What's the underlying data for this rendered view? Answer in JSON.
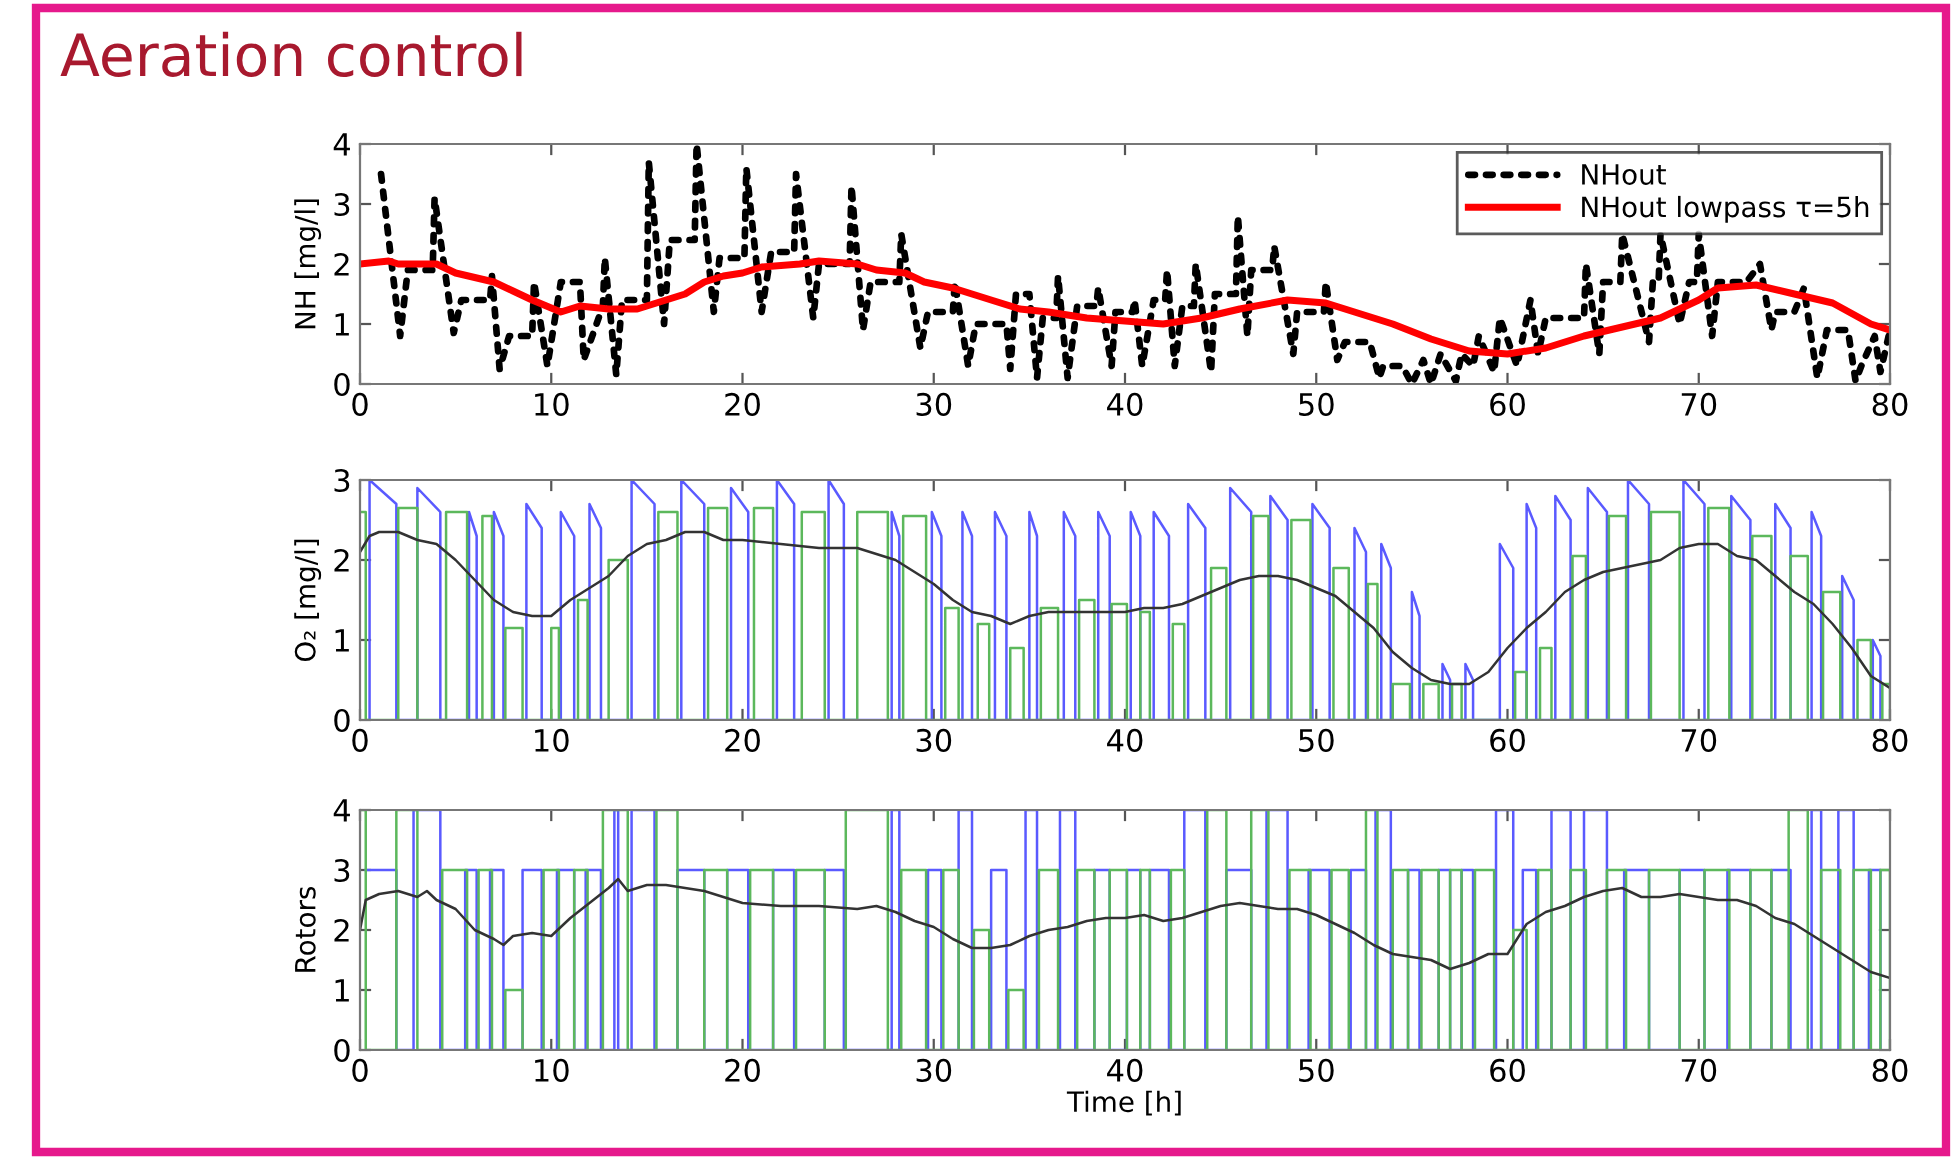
{
  "chart_data": [
    {
      "type": "line",
      "title": "Aeration control",
      "ylabel": "NH [mg/l]",
      "xlim": [
        0,
        80
      ],
      "xticks": [
        0,
        10,
        20,
        30,
        40,
        50,
        60,
        70,
        80
      ],
      "ylim": [
        0,
        4
      ],
      "yticks": [
        0,
        1,
        2,
        3,
        4
      ],
      "grid": false,
      "legend": "top right",
      "series": [
        {
          "name": "NHout",
          "color": "#000000",
          "line_style": "dotted",
          "x": [
            1.1,
            2.1,
            2.5,
            3.8,
            3.9,
            4.9,
            5.3,
            6.8,
            6.9,
            7.3,
            7.8,
            9.0,
            9.1,
            9.8,
            10.5,
            11.5,
            11.7,
            12.7,
            12.8,
            13.4,
            13.7,
            15.0,
            15.1,
            15.9,
            16.2,
            17.5,
            17.6,
            18.5,
            18.8,
            20.1,
            20.2,
            21.0,
            21.5,
            22.7,
            22.8,
            23.7,
            24.0,
            25.6,
            25.7,
            26.3,
            26.7,
            28.2,
            28.3,
            29.3,
            29.7,
            31.0,
            31.1,
            31.8,
            32.2,
            33.8,
            34.0,
            34.3,
            35.0,
            35.4,
            35.7,
            36.4,
            36.5,
            37.0,
            37.5,
            38.5,
            38.6,
            39.3,
            39.5,
            40.4,
            40.5,
            40.9,
            41.5,
            42.1,
            42.2,
            42.6,
            43.0,
            43.6,
            43.7,
            44.5,
            44.7,
            45.8,
            45.9,
            46.4,
            46.6,
            47.7,
            47.8,
            48.8,
            49.0,
            50.4,
            50.5,
            51.1,
            51.5,
            52.8,
            53.3,
            53.5,
            54.5,
            55.0,
            55.6,
            56.0,
            56.5,
            57.3,
            57.6,
            58.2,
            58.5,
            59.3,
            59.6,
            60.5,
            61.2,
            61.6,
            62.0,
            64.0,
            64.1,
            64.8,
            65.0,
            65.9,
            66.0,
            67.4,
            67.6,
            67.9,
            68.0,
            69.0,
            69.5,
            69.9,
            70.0,
            70.7,
            71.0,
            72.5,
            73.2,
            73.8,
            74.0,
            75.0,
            75.5,
            76.2,
            76.7,
            77.8,
            78.2,
            78.5,
            79.2,
            79.5,
            80.0
          ],
          "values": [
            3.5,
            0.8,
            1.9,
            1.9,
            3.1,
            0.85,
            1.4,
            1.4,
            1.8,
            0.25,
            0.8,
            0.8,
            1.7,
            0.3,
            1.7,
            1.7,
            0.4,
            1.3,
            2.1,
            0.15,
            1.4,
            1.4,
            3.7,
            1.0,
            2.4,
            2.4,
            4.0,
            1.2,
            2.1,
            2.1,
            3.6,
            1.2,
            2.2,
            2.2,
            3.5,
            1.1,
            2.0,
            2.0,
            3.3,
            0.9,
            1.7,
            1.7,
            2.5,
            0.6,
            1.2,
            1.2,
            1.7,
            0.3,
            1.0,
            1.0,
            0.25,
            1.5,
            1.5,
            0.1,
            1.1,
            1.1,
            1.8,
            0.1,
            1.3,
            1.3,
            1.6,
            0.3,
            1.2,
            1.2,
            1.4,
            0.3,
            1.4,
            1.4,
            1.9,
            0.3,
            1.3,
            1.3,
            2.0,
            0.2,
            1.5,
            1.5,
            2.8,
            0.8,
            1.9,
            1.9,
            2.3,
            0.5,
            1.2,
            1.2,
            1.7,
            0.4,
            0.7,
            0.7,
            0.1,
            0.3,
            0.3,
            0.0,
            0.4,
            0.0,
            0.5,
            0.05,
            0.5,
            0.3,
            0.8,
            0.2,
            1.1,
            0.3,
            1.4,
            0.5,
            1.1,
            1.1,
            2.0,
            0.5,
            1.7,
            1.7,
            2.5,
            0.7,
            1.7,
            1.7,
            2.5,
            1.0,
            1.7,
            1.7,
            2.5,
            0.8,
            1.7,
            1.7,
            2.0,
            0.9,
            1.2,
            1.2,
            1.6,
            0.1,
            0.9,
            0.9,
            0.05,
            0.3,
            0.8,
            0.2,
            0.9
          ]
        },
        {
          "name": "NHout lowpass τ=5h",
          "color": "#ff0000",
          "line_style": "solid",
          "x": [
            0,
            1.5,
            2,
            4,
            5,
            7,
            8,
            9,
            10.5,
            11.5,
            13,
            14.5,
            16,
            17,
            18,
            19,
            20,
            21,
            23,
            24,
            26,
            27,
            28.5,
            29.5,
            31,
            32,
            33,
            34.5,
            36,
            38,
            40,
            42,
            44,
            46,
            48.5,
            50.5,
            52,
            54,
            56,
            58,
            60,
            62,
            64,
            66,
            68,
            70,
            71,
            73,
            75,
            77,
            79,
            80
          ],
          "values": [
            2.0,
            2.05,
            2.0,
            2.0,
            1.85,
            1.7,
            1.55,
            1.4,
            1.2,
            1.3,
            1.25,
            1.25,
            1.4,
            1.5,
            1.7,
            1.8,
            1.85,
            1.95,
            2.0,
            2.05,
            2.0,
            1.9,
            1.85,
            1.7,
            1.6,
            1.5,
            1.4,
            1.25,
            1.2,
            1.1,
            1.05,
            1.0,
            1.1,
            1.25,
            1.4,
            1.35,
            1.2,
            1.0,
            0.75,
            0.55,
            0.5,
            0.6,
            0.8,
            0.95,
            1.1,
            1.4,
            1.6,
            1.65,
            1.5,
            1.35,
            1.0,
            0.9
          ]
        }
      ]
    },
    {
      "type": "line",
      "ylabel": "O₂ [mg/l]",
      "xlim": [
        0,
        80
      ],
      "xticks": [
        0,
        10,
        20,
        30,
        40,
        50,
        60,
        70,
        80
      ],
      "ylim": [
        0,
        3
      ],
      "yticks": [
        0,
        1,
        2,
        3
      ],
      "grid": false,
      "series": [
        {
          "color": "#5a5aff",
          "x": [
            0.5,
            0.5,
            1.9,
            1.9,
            3.0,
            3.0,
            4.2,
            4.2,
            5.7,
            5.7,
            6.1,
            6.1,
            7.0,
            7.0,
            7.5,
            7.5,
            8.7,
            8.7,
            9.5,
            9.5,
            10.5,
            10.5,
            11.2,
            11.2,
            12.0,
            12.0,
            12.6,
            12.6,
            14.2,
            14.2,
            15.4,
            15.4,
            16.8,
            16.8,
            18.0,
            18.0,
            19.4,
            19.4,
            20.3,
            20.3,
            21.8,
            21.8,
            22.7,
            22.7,
            24.5,
            24.5,
            25.3,
            25.3,
            27.8,
            27.8,
            28.2,
            28.2,
            29.9,
            29.9,
            30.4,
            30.4,
            31.5,
            31.5,
            32.0,
            32.0,
            33.2,
            33.2,
            33.8,
            33.8,
            35.0,
            35.0,
            35.4,
            35.4,
            36.8,
            36.8,
            37.4,
            37.4,
            38.6,
            38.6,
            39.2,
            39.2,
            40.3,
            40.3,
            40.8,
            40.8,
            41.5,
            41.5,
            42.3,
            42.3,
            43.3,
            43.3,
            44.2,
            44.2,
            45.5,
            45.5,
            46.6,
            46.6,
            47.6,
            47.6,
            48.5,
            48.5,
            49.8,
            49.8,
            50.7,
            50.7,
            52.0,
            52.0,
            52.6,
            52.6,
            53.4,
            53.4,
            53.9,
            53.9,
            55.0,
            55.0,
            55.4,
            55.4,
            56.6,
            56.6,
            57.0,
            57.0,
            57.8,
            57.8,
            58.2,
            58.2,
            59.6,
            59.6,
            60.3,
            60.3,
            61.0,
            61.0,
            61.5,
            61.5,
            62.5,
            62.5,
            63.3,
            63.3,
            64.2,
            64.2,
            65.2,
            65.2,
            66.3,
            66.3,
            67.4,
            67.4,
            69.2,
            69.2,
            70.3,
            70.3,
            71.7,
            71.7,
            72.7,
            72.7,
            74.0,
            74.0,
            74.8,
            74.8,
            75.9,
            75.9,
            76.4,
            76.4,
            77.5,
            77.5,
            78.1,
            78.1,
            79.1,
            79.1,
            79.5,
            79.5
          ],
          "values": [
            0,
            3.0,
            2.7,
            0,
            0,
            2.9,
            2.6,
            0,
            0,
            2.6,
            2.3,
            0,
            0,
            2.6,
            2.3,
            0,
            0,
            2.7,
            2.4,
            0,
            0,
            2.6,
            2.3,
            0,
            0,
            2.7,
            2.4,
            0,
            0,
            3.0,
            2.7,
            0,
            0,
            3.0,
            2.7,
            0,
            0,
            2.9,
            2.6,
            0,
            0,
            3.0,
            2.7,
            0,
            0,
            3.0,
            2.7,
            0,
            0,
            2.6,
            2.3,
            0,
            0,
            2.6,
            2.3,
            0,
            0,
            2.6,
            2.3,
            0,
            0,
            2.6,
            2.3,
            0,
            0,
            2.6,
            2.3,
            0,
            0,
            2.6,
            2.3,
            0,
            0,
            2.6,
            2.3,
            0,
            0,
            2.6,
            2.3,
            0,
            0,
            2.6,
            2.3,
            0,
            0,
            2.7,
            2.4,
            0,
            0,
            2.9,
            2.6,
            0,
            0,
            2.8,
            2.5,
            0,
            0,
            2.7,
            2.4,
            0,
            0,
            2.4,
            2.1,
            0,
            0,
            2.2,
            1.9,
            0,
            0,
            1.6,
            1.3,
            0,
            0,
            0.7,
            0.5,
            0,
            0,
            0.7,
            0.5,
            0,
            0,
            2.2,
            1.9,
            0,
            0,
            2.7,
            2.4,
            0,
            0,
            2.8,
            2.5,
            0,
            0,
            2.9,
            2.6,
            0,
            0,
            3.0,
            2.7,
            0,
            0,
            3.0,
            2.7,
            0,
            0,
            2.8,
            2.5,
            0,
            0,
            2.7,
            2.4,
            0,
            0,
            2.6,
            2.3,
            0,
            0,
            1.8,
            1.5,
            0,
            0,
            1.0,
            0.8,
            0
          ]
        },
        {
          "type": "step",
          "color": "#5cb85c",
          "x": [
            0.0,
            0.3,
            2.0,
            3.0,
            4.5,
            5.6,
            6.4,
            6.9,
            7.6,
            8.5,
            10.0,
            10.4,
            11.4,
            11.9,
            13.0,
            14.0,
            15.6,
            16.6,
            18.2,
            19.2,
            20.6,
            21.6,
            23.1,
            24.3,
            26.0,
            27.6,
            28.4,
            29.6,
            30.6,
            31.3,
            32.3,
            32.9,
            34.0,
            34.7,
            35.6,
            36.5,
            37.6,
            38.4,
            39.3,
            40.1,
            40.8,
            41.3,
            42.5,
            43.1,
            44.5,
            45.3,
            46.7,
            47.5,
            48.7,
            49.7,
            50.9,
            51.7,
            52.7,
            53.2,
            54.0,
            54.9,
            55.6,
            56.4,
            57.1,
            57.6,
            60.4,
            61.0,
            61.7,
            62.3,
            63.4,
            64.1,
            65.3,
            66.2,
            67.5,
            69.0,
            70.5,
            71.6,
            72.8,
            73.8,
            74.8,
            75.7,
            76.5,
            77.4,
            78.3,
            79.0,
            79.6,
            80.0
          ],
          "values": [
            2.6,
            0,
            2.65,
            0,
            2.6,
            0,
            2.55,
            0,
            1.15,
            0,
            1.15,
            0,
            1.5,
            0,
            2.0,
            0,
            2.6,
            0,
            2.65,
            0,
            2.65,
            0,
            2.6,
            0,
            2.6,
            0,
            2.55,
            0,
            1.4,
            0,
            1.2,
            0,
            0.9,
            0,
            1.4,
            0,
            1.5,
            0,
            1.45,
            0,
            1.35,
            0,
            1.2,
            0,
            1.9,
            0,
            2.55,
            0,
            2.5,
            0,
            1.9,
            0,
            1.7,
            0,
            0.45,
            0,
            0.45,
            0,
            0.45,
            0,
            0.6,
            0,
            0.9,
            0,
            2.05,
            0,
            2.55,
            0,
            2.6,
            0,
            2.65,
            0,
            2.3,
            0,
            2.05,
            0,
            1.6,
            0,
            1.0,
            0,
            0.45,
            0
          ]
        },
        {
          "color": "#333333",
          "x": [
            0,
            0.5,
            1,
            2,
            3,
            4,
            5,
            6,
            7,
            8,
            9,
            10,
            11,
            12,
            13,
            14,
            15,
            16,
            17,
            18,
            19,
            20,
            22,
            24,
            26,
            28,
            29,
            30,
            31,
            32,
            33,
            34,
            35,
            36,
            38,
            40,
            41,
            42,
            43,
            44,
            45,
            46,
            47,
            48,
            49,
            50,
            51,
            52,
            53,
            54,
            55,
            56,
            57,
            58,
            59,
            60,
            61,
            62,
            63,
            64,
            65,
            66,
            67,
            68,
            69,
            70,
            71,
            72,
            73,
            74,
            75,
            76,
            77,
            78,
            79,
            80
          ],
          "values": [
            2.1,
            2.3,
            2.35,
            2.35,
            2.25,
            2.2,
            2.0,
            1.75,
            1.5,
            1.35,
            1.3,
            1.3,
            1.5,
            1.65,
            1.8,
            2.05,
            2.2,
            2.25,
            2.35,
            2.35,
            2.25,
            2.25,
            2.2,
            2.15,
            2.15,
            2.0,
            1.85,
            1.7,
            1.5,
            1.35,
            1.3,
            1.2,
            1.3,
            1.35,
            1.35,
            1.35,
            1.4,
            1.4,
            1.45,
            1.55,
            1.65,
            1.75,
            1.8,
            1.8,
            1.75,
            1.65,
            1.55,
            1.35,
            1.15,
            0.85,
            0.65,
            0.5,
            0.45,
            0.45,
            0.6,
            0.9,
            1.15,
            1.35,
            1.6,
            1.75,
            1.85,
            1.9,
            1.95,
            2.0,
            2.15,
            2.2,
            2.2,
            2.05,
            2.0,
            1.8,
            1.6,
            1.45,
            1.2,
            0.9,
            0.55,
            0.4
          ]
        }
      ]
    },
    {
      "type": "step",
      "ylabel": "Rotors",
      "xlabel": "Time [h]",
      "xlim": [
        0,
        80
      ],
      "xticks": [
        0,
        10,
        20,
        30,
        40,
        50,
        60,
        70,
        80
      ],
      "ylim": [
        0,
        4
      ],
      "yticks": [
        0,
        1,
        2,
        3,
        4
      ],
      "grid": false,
      "series": [
        {
          "color": "#5a5aff",
          "x": [
            0.3,
            1.9,
            2.8,
            4.2,
            5.5,
            6.1,
            6.8,
            7.5,
            8.5,
            9.5,
            10.3,
            11.2,
            11.8,
            12.6,
            13.3,
            13.5,
            14.2,
            15.4,
            16.6,
            18.0,
            19.2,
            20.3,
            21.6,
            22.7,
            24.3,
            25.3,
            27.8,
            28.2,
            29.7,
            30.4,
            31.3,
            32.0,
            33.0,
            33.8,
            34.8,
            35.4,
            36.6,
            37.4,
            38.4,
            39.2,
            40.1,
            40.8,
            41.3,
            42.3,
            43.1,
            44.2,
            45.3,
            46.6,
            47.4,
            48.5,
            49.6,
            50.7,
            51.8,
            52.6,
            53.1,
            53.9,
            54.8,
            55.4,
            56.4,
            57.0,
            57.6,
            58.2,
            59.4,
            60.3,
            60.8,
            61.5,
            62.3,
            63.3,
            64.0,
            65.2,
            66.1,
            67.4,
            69.0,
            70.3,
            71.5,
            72.7,
            73.8,
            74.8,
            75.9,
            76.4,
            77.3,
            78.1,
            78.9,
            79.5
          ],
          "values": [
            3,
            0,
            4,
            0,
            3,
            0,
            3,
            0,
            3,
            0,
            3,
            0,
            3,
            0,
            4,
            0,
            4,
            0,
            3,
            0,
            3,
            0,
            3,
            0,
            3,
            0,
            4,
            0,
            3,
            0,
            4,
            0,
            3,
            0,
            4,
            0,
            4,
            0,
            3,
            0,
            3,
            0,
            3,
            0,
            4,
            0,
            3,
            0,
            4,
            0,
            3,
            0,
            3,
            0,
            4,
            0,
            3,
            0,
            3,
            0,
            3,
            0,
            4,
            0,
            3,
            0,
            4,
            0,
            4,
            0,
            3,
            0,
            3,
            0,
            3,
            0,
            3,
            0,
            4,
            0,
            4,
            0,
            3,
            0
          ]
        },
        {
          "color": "#5cb85c",
          "x": [
            0.0,
            0.3,
            1.9,
            3.0,
            4.3,
            5.6,
            6.2,
            6.9,
            7.6,
            8.5,
            9.6,
            10.4,
            11.2,
            11.9,
            12.7,
            14.0,
            15.5,
            16.6,
            18.0,
            19.2,
            20.4,
            21.6,
            22.8,
            24.3,
            25.4,
            27.6,
            28.3,
            29.6,
            30.5,
            31.3,
            32.1,
            32.9,
            33.9,
            34.7,
            35.5,
            36.5,
            37.5,
            38.4,
            39.2,
            40.1,
            40.8,
            41.3,
            42.4,
            43.1,
            44.3,
            45.3,
            46.6,
            47.5,
            48.6,
            49.7,
            50.8,
            51.7,
            52.6,
            53.2,
            54.0,
            54.8,
            55.5,
            56.4,
            57.0,
            57.6,
            58.3,
            59.3,
            60.3,
            61.0,
            61.6,
            62.3,
            63.3,
            64.1,
            65.2,
            66.2,
            67.4,
            69.0,
            70.3,
            71.6,
            72.7,
            73.8,
            74.7,
            75.7,
            76.4,
            77.4,
            78.1,
            79.0,
            79.5,
            80.0
          ],
          "values": [
            4,
            0,
            4,
            0,
            3,
            0,
            3,
            0,
            1,
            0,
            3,
            0,
            3,
            0,
            4,
            0,
            4,
            0,
            3,
            0,
            3,
            0,
            3,
            0,
            4,
            0,
            3,
            0,
            3,
            0,
            2,
            0,
            1,
            0,
            3,
            0,
            3,
            0,
            3,
            0,
            3,
            0,
            3,
            0,
            4,
            0,
            4,
            0,
            3,
            0,
            3,
            0,
            4,
            0,
            3,
            0,
            3,
            0,
            3,
            0,
            3,
            0,
            2,
            0,
            3,
            0,
            3,
            0,
            3,
            0,
            3,
            0,
            3,
            0,
            3,
            0,
            4,
            0,
            3,
            0,
            3,
            0,
            3,
            0
          ]
        },
        {
          "type": "line",
          "color": "#333333",
          "x": [
            0,
            0.3,
            1,
            2,
            3,
            3.5,
            4,
            5,
            6,
            7,
            7.5,
            8,
            9,
            10,
            11,
            12,
            13,
            13.5,
            14,
            15,
            16,
            17,
            18,
            19,
            20,
            22,
            24,
            26,
            27,
            28,
            29,
            30,
            31,
            32,
            33,
            34,
            35,
            36,
            37,
            38,
            39,
            40,
            41,
            42,
            43,
            44,
            45,
            46,
            47,
            48,
            49,
            50,
            51,
            52,
            53,
            54,
            55,
            56,
            57,
            58,
            59,
            60,
            61,
            62,
            63,
            64,
            65,
            66,
            67,
            68,
            69,
            70,
            71,
            72,
            73,
            74,
            75,
            76,
            77,
            78,
            79,
            80
          ],
          "values": [
            2.0,
            2.5,
            2.6,
            2.65,
            2.55,
            2.65,
            2.5,
            2.35,
            2.0,
            1.85,
            1.75,
            1.9,
            1.95,
            1.9,
            2.2,
            2.45,
            2.7,
            2.85,
            2.65,
            2.75,
            2.75,
            2.7,
            2.65,
            2.55,
            2.45,
            2.4,
            2.4,
            2.35,
            2.4,
            2.3,
            2.15,
            2.05,
            1.85,
            1.7,
            1.7,
            1.75,
            1.9,
            2.0,
            2.05,
            2.15,
            2.2,
            2.2,
            2.25,
            2.15,
            2.2,
            2.3,
            2.4,
            2.45,
            2.4,
            2.35,
            2.35,
            2.25,
            2.1,
            1.95,
            1.75,
            1.6,
            1.55,
            1.5,
            1.35,
            1.45,
            1.6,
            1.6,
            2.1,
            2.3,
            2.4,
            2.55,
            2.65,
            2.7,
            2.55,
            2.55,
            2.6,
            2.55,
            2.5,
            2.5,
            2.4,
            2.2,
            2.1,
            1.9,
            1.7,
            1.5,
            1.3,
            1.2
          ]
        }
      ]
    }
  ]
}
